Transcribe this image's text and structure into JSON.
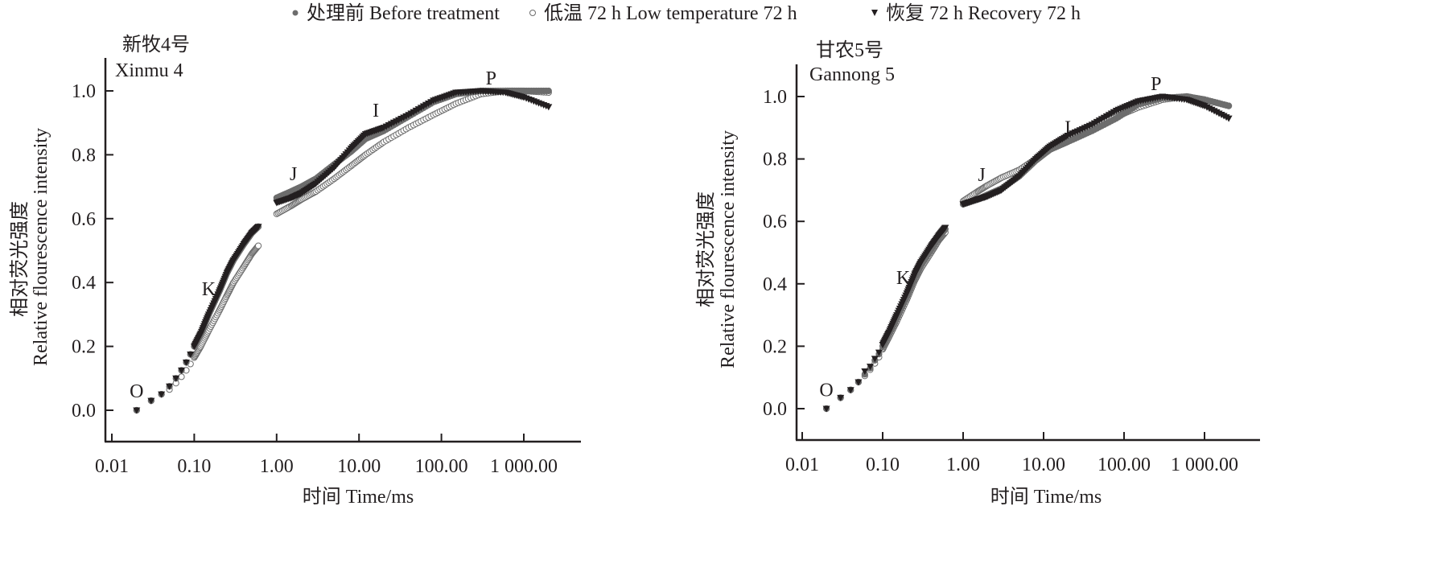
{
  "legend": {
    "items": [
      {
        "label": "处理前 Before treatment",
        "marker": "filled-circle",
        "color": "#6d6d6d"
      },
      {
        "label": "低温 72 h Low temperature 72 h",
        "marker": "open-circle",
        "color": "#ffffff"
      },
      {
        "label": "恢复 72 h Recovery 72 h",
        "marker": "filled-triangle-down",
        "color": "#231f20"
      }
    ]
  },
  "chart_data": [
    {
      "type": "scatter",
      "title_cn": "新牧4号",
      "title_en": "Xinmu 4",
      "xlabel": "时间 Time/ms",
      "ylabel_cn": "相对荧光强度",
      "ylabel_en": "Relative flourescence intensity",
      "xscale": "log",
      "xlim": [
        0.009,
        3000
      ],
      "ylim": [
        -0.1,
        1.1
      ],
      "xticks": [
        0.01,
        0.1,
        1,
        10,
        100,
        1000
      ],
      "xtick_labels": [
        "0.01",
        "0.10",
        "1.00",
        "10.00",
        "100.00",
        "1 000.00"
      ],
      "yticks": [
        0.0,
        0.2,
        0.4,
        0.6,
        0.8,
        1.0
      ],
      "ytick_labels": [
        "0.0",
        "0.2",
        "0.4",
        "0.6",
        "0.8",
        "1.0"
      ],
      "annotations": [
        {
          "text": "O",
          "x": 0.02,
          "y": 0.04
        },
        {
          "text": "K",
          "x": 0.15,
          "y": 0.36
        },
        {
          "text": "J",
          "x": 1.6,
          "y": 0.72
        },
        {
          "text": "I",
          "x": 16,
          "y": 0.92
        },
        {
          "text": "P",
          "x": 400,
          "y": 1.02
        }
      ],
      "series": [
        {
          "name": "处理前 Before treatment",
          "x": [
            0.02,
            0.03,
            0.04,
            0.05,
            0.06,
            0.07,
            0.08,
            0.09,
            0.1,
            0.12,
            0.15,
            0.2,
            0.25,
            0.3,
            0.4,
            0.5,
            0.6,
            1,
            1.5,
            2,
            3,
            5,
            8,
            12,
            20,
            40,
            80,
            150,
            300,
            600,
            1000,
            2000
          ],
          "y": [
            0.0,
            0.03,
            0.05,
            0.075,
            0.1,
            0.125,
            0.15,
            0.175,
            0.2,
            0.24,
            0.3,
            0.37,
            0.43,
            0.47,
            0.52,
            0.555,
            0.575,
            0.665,
            0.685,
            0.7,
            0.725,
            0.77,
            0.81,
            0.85,
            0.875,
            0.92,
            0.965,
            0.99,
            1.0,
            1.0,
            1.0,
            1.0
          ]
        },
        {
          "name": "低温 72 h Low temperature 72 h",
          "x": [
            0.02,
            0.03,
            0.04,
            0.05,
            0.06,
            0.07,
            0.08,
            0.09,
            0.1,
            0.12,
            0.15,
            0.2,
            0.25,
            0.3,
            0.4,
            0.5,
            0.6,
            1,
            1.5,
            2,
            3,
            5,
            8,
            12,
            20,
            40,
            80,
            150,
            300,
            600,
            1000,
            2000
          ],
          "y": [
            0.0,
            0.03,
            0.05,
            0.065,
            0.085,
            0.105,
            0.125,
            0.145,
            0.165,
            0.2,
            0.25,
            0.31,
            0.36,
            0.4,
            0.45,
            0.49,
            0.515,
            0.615,
            0.64,
            0.66,
            0.685,
            0.725,
            0.765,
            0.8,
            0.84,
            0.885,
            0.925,
            0.96,
            0.99,
            1.0,
            1.0,
            0.995
          ]
        },
        {
          "name": "恢复 72 h Recovery 72 h",
          "x": [
            0.02,
            0.03,
            0.04,
            0.05,
            0.06,
            0.07,
            0.08,
            0.09,
            0.1,
            0.12,
            0.15,
            0.2,
            0.25,
            0.3,
            0.4,
            0.5,
            0.6,
            1,
            1.5,
            2,
            3,
            5,
            8,
            12,
            20,
            40,
            80,
            150,
            300,
            600,
            1000,
            2000
          ],
          "y": [
            0.0,
            0.03,
            0.05,
            0.075,
            0.1,
            0.125,
            0.15,
            0.175,
            0.2,
            0.24,
            0.3,
            0.37,
            0.43,
            0.47,
            0.52,
            0.555,
            0.575,
            0.65,
            0.665,
            0.68,
            0.71,
            0.76,
            0.82,
            0.865,
            0.885,
            0.925,
            0.97,
            0.995,
            1.0,
            0.995,
            0.98,
            0.95
          ]
        }
      ]
    },
    {
      "type": "scatter",
      "title_cn": "甘农5号",
      "title_en": "Gannong 5",
      "xlabel": "时间 Time/ms",
      "ylabel_cn": "相对荧光强度",
      "ylabel_en": "Relative flourescence intensity",
      "xscale": "log",
      "xlim": [
        0.009,
        3000
      ],
      "ylim": [
        -0.1,
        1.1
      ],
      "xticks": [
        0.01,
        0.1,
        1,
        10,
        100,
        1000
      ],
      "xtick_labels": [
        "0.01",
        "0.10",
        "1.00",
        "10.00",
        "100.00",
        "1 000.00"
      ],
      "yticks": [
        0.0,
        0.2,
        0.4,
        0.6,
        0.8,
        1.0
      ],
      "ytick_labels": [
        "0.0",
        "0.2",
        "0.4",
        "0.6",
        "0.8",
        "1.0"
      ],
      "annotations": [
        {
          "text": "O",
          "x": 0.02,
          "y": 0.04
        },
        {
          "text": "K",
          "x": 0.18,
          "y": 0.4
        },
        {
          "text": "J",
          "x": 1.7,
          "y": 0.73
        },
        {
          "text": "I",
          "x": 20,
          "y": 0.88
        },
        {
          "text": "P",
          "x": 250,
          "y": 1.02
        }
      ],
      "series": [
        {
          "name": "处理前 Before treatment",
          "x": [
            0.02,
            0.03,
            0.04,
            0.05,
            0.06,
            0.07,
            0.08,
            0.09,
            0.1,
            0.12,
            0.15,
            0.2,
            0.25,
            0.3,
            0.4,
            0.5,
            0.6,
            1,
            1.5,
            2,
            3,
            5,
            8,
            12,
            20,
            40,
            80,
            150,
            300,
            600,
            1000,
            2000
          ],
          "y": [
            0.0,
            0.035,
            0.06,
            0.085,
            0.11,
            0.13,
            0.155,
            0.175,
            0.2,
            0.24,
            0.29,
            0.36,
            0.42,
            0.46,
            0.51,
            0.55,
            0.575,
            0.655,
            0.67,
            0.685,
            0.705,
            0.745,
            0.795,
            0.83,
            0.855,
            0.89,
            0.93,
            0.975,
            0.995,
            1.0,
            0.99,
            0.97
          ]
        },
        {
          "name": "低温 72 h Low temperature 72 h",
          "x": [
            0.02,
            0.03,
            0.04,
            0.05,
            0.06,
            0.07,
            0.08,
            0.09,
            0.1,
            0.12,
            0.15,
            0.2,
            0.25,
            0.3,
            0.4,
            0.5,
            0.6,
            1,
            1.5,
            2,
            3,
            5,
            8,
            12,
            20,
            40,
            80,
            150,
            300,
            600,
            1000,
            2000
          ],
          "y": [
            0.0,
            0.035,
            0.06,
            0.085,
            0.105,
            0.125,
            0.145,
            0.165,
            0.19,
            0.23,
            0.28,
            0.35,
            0.41,
            0.45,
            0.5,
            0.54,
            0.565,
            0.665,
            0.695,
            0.715,
            0.74,
            0.765,
            0.8,
            0.83,
            0.86,
            0.9,
            0.935,
            0.965,
            0.99,
            1.0,
            0.99,
            0.97
          ]
        },
        {
          "name": "恢复 72 h Recovery 72 h",
          "x": [
            0.02,
            0.03,
            0.04,
            0.05,
            0.06,
            0.07,
            0.08,
            0.09,
            0.1,
            0.12,
            0.15,
            0.2,
            0.25,
            0.3,
            0.4,
            0.5,
            0.6,
            1,
            1.5,
            2,
            3,
            5,
            8,
            12,
            20,
            40,
            80,
            150,
            300,
            600,
            1000,
            2000
          ],
          "y": [
            0.0,
            0.035,
            0.06,
            0.085,
            0.12,
            0.135,
            0.16,
            0.18,
            0.205,
            0.245,
            0.3,
            0.37,
            0.43,
            0.47,
            0.52,
            0.555,
            0.58,
            0.655,
            0.67,
            0.68,
            0.7,
            0.745,
            0.8,
            0.84,
            0.875,
            0.91,
            0.955,
            0.985,
            1.0,
            0.99,
            0.97,
            0.93
          ]
        }
      ]
    }
  ]
}
